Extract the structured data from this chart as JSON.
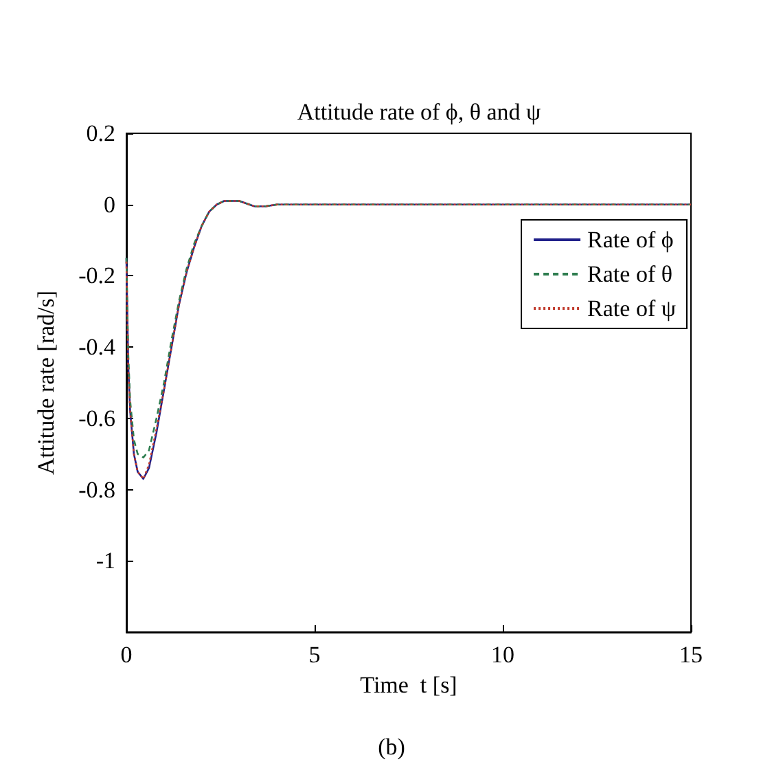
{
  "chart_data": {
    "type": "line",
    "title": "Attitude rate of ϕ, θ and ψ",
    "xlabel": "Time  t [s]",
    "ylabel": "Attitude rate [rad/s]",
    "x": [
      0,
      0.05,
      0.1,
      0.2,
      0.3,
      0.45,
      0.6,
      0.8,
      1.0,
      1.2,
      1.4,
      1.6,
      1.8,
      2.0,
      2.2,
      2.4,
      2.6,
      3.0,
      3.4,
      3.7,
      4,
      15
    ],
    "series": [
      {
        "name": "Rate of ϕ",
        "color": "#20208a",
        "line_style": "solid",
        "values": [
          -0.15,
          -0.45,
          -0.58,
          -0.7,
          -0.75,
          -0.77,
          -0.74,
          -0.64,
          -0.52,
          -0.4,
          -0.28,
          -0.19,
          -0.12,
          -0.06,
          -0.02,
          0,
          0.01,
          0.01,
          -0.005,
          -0.005,
          0,
          0
        ]
      },
      {
        "name": "Rate of θ",
        "color": "#2e7d4f",
        "line_style": "dashed",
        "values": [
          -0.15,
          -0.42,
          -0.55,
          -0.66,
          -0.7,
          -0.71,
          -0.69,
          -0.6,
          -0.5,
          -0.38,
          -0.27,
          -0.18,
          -0.11,
          -0.06,
          -0.02,
          0,
          0.01,
          0.01,
          -0.005,
          -0.005,
          0,
          0
        ]
      },
      {
        "name": "Rate of ψ",
        "color": "#c0392b",
        "line_style": "dotted",
        "values": [
          -0.16,
          -0.46,
          -0.58,
          -0.7,
          -0.75,
          -0.77,
          -0.73,
          -0.63,
          -0.52,
          -0.4,
          -0.28,
          -0.19,
          -0.12,
          -0.06,
          -0.02,
          0,
          0.01,
          0.01,
          -0.005,
          -0.005,
          0,
          0
        ]
      }
    ],
    "xlim": [
      0,
      15
    ],
    "xticks": [
      0,
      5,
      10,
      15
    ],
    "ylim": [
      -1.2,
      0.2
    ],
    "yticks": [
      -1,
      -0.8,
      -0.6,
      -0.4,
      -0.2,
      0,
      0.2
    ],
    "grid": false,
    "legend": "top right",
    "marker": "none",
    "annotations": [
      "(b)"
    ]
  }
}
